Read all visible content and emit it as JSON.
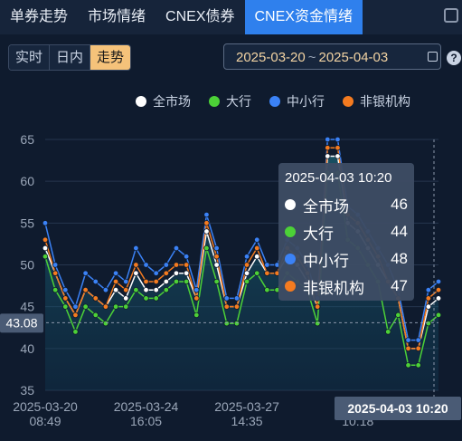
{
  "tabs": [
    "单券走势",
    "市场情绪",
    "CNEX债券",
    "CNEX资金情绪"
  ],
  "mode_buttons": [
    "实时",
    "日内",
    "走势"
  ],
  "date_range": {
    "start": "2025-03-20",
    "separator": "~",
    "end": "2025-04-03"
  },
  "help_label": "?",
  "tooltip": {
    "title": "2025-04-03 10:20",
    "rows": [
      {
        "name": "全市场",
        "value": "46"
      },
      {
        "name": "大行",
        "value": "44"
      },
      {
        "name": "中小行",
        "value": "48"
      },
      {
        "name": "非银机构",
        "value": "47"
      }
    ]
  },
  "crosshair": {
    "y_label": "43.08",
    "x_label": "2025-04-03 10:20"
  },
  "colors": {
    "all": "#ffffff",
    "big": "#4cd137",
    "small": "#3b82f6",
    "nonbank": "#f47b20",
    "active_tab": "#2f80ed",
    "active_mode": "#f5c27a"
  },
  "chart_data": {
    "type": "line",
    "ylim": [
      35,
      65
    ],
    "yticks": [
      35,
      40,
      45,
      50,
      55,
      60,
      65
    ],
    "x_tick_labels": [
      {
        "index": 0,
        "line1": "2025-03-20",
        "line2": "08:49"
      },
      {
        "index": 10,
        "line1": "2025-03-24",
        "line2": "16:05"
      },
      {
        "index": 20,
        "line1": "2025-03-27",
        "line2": "14:35"
      },
      {
        "index": 31,
        "line1": "20",
        "line2": "10:18"
      }
    ],
    "series": [
      {
        "name": "全市场",
        "color": "#ffffff",
        "values": [
          52,
          49,
          46,
          44,
          47,
          46,
          45,
          47,
          46,
          49,
          47,
          47,
          48,
          49,
          49,
          46,
          54,
          50,
          45,
          45,
          49,
          51,
          49,
          49,
          51,
          50,
          48,
          45,
          63,
          63,
          55,
          54,
          52,
          50,
          48,
          46,
          40,
          40,
          45,
          46
        ]
      },
      {
        "name": "大行",
        "color": "#4cd137",
        "values": [
          51,
          47,
          45,
          42,
          45,
          44,
          43,
          45,
          45,
          47,
          46,
          46,
          47,
          48,
          48,
          44,
          52,
          48,
          43,
          43,
          48,
          49,
          47,
          47,
          49,
          48,
          47,
          43,
          61,
          61,
          53,
          52,
          50,
          48,
          42,
          44,
          38,
          38,
          43,
          44
        ]
      },
      {
        "name": "中小行",
        "color": "#3b82f6",
        "values": [
          55,
          50,
          47,
          45,
          49,
          48,
          47,
          49,
          48,
          52,
          50,
          49,
          50,
          52,
          51,
          47,
          56,
          52,
          46,
          46,
          51,
          53,
          50,
          50,
          53,
          52,
          50,
          46,
          65,
          65,
          57,
          56,
          54,
          52,
          50,
          47,
          41,
          41,
          47,
          48
        ]
      },
      {
        "name": "非银机构",
        "color": "#f47b20",
        "values": [
          53,
          49,
          46,
          44,
          47,
          46,
          45,
          48,
          47,
          50,
          48,
          48,
          49,
          50,
          50,
          46,
          55,
          51,
          45,
          45,
          50,
          52,
          49,
          49,
          52,
          51,
          49,
          45,
          64,
          64,
          56,
          55,
          53,
          51,
          48,
          46,
          40,
          40,
          46,
          47
        ]
      }
    ]
  }
}
